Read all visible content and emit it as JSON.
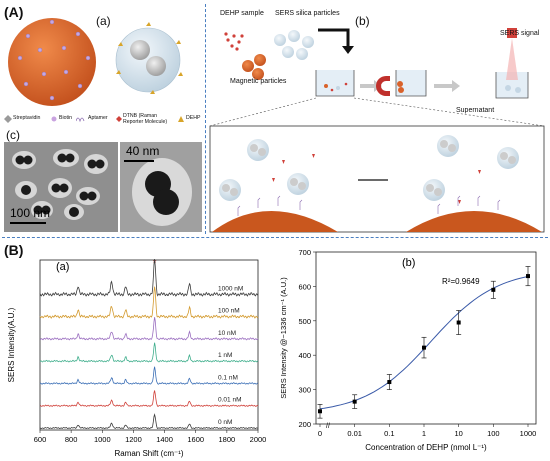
{
  "panel_A": {
    "label": "(A)",
    "sub_a": "(a)",
    "sub_b": "(b)",
    "sub_c": "(c)",
    "legend": [
      {
        "text": "Streptavidin",
        "icon": "streptavidin-icon"
      },
      {
        "text": "Biotin",
        "icon": "biotin-icon"
      },
      {
        "text": "Aptamer",
        "icon": "aptamer-icon"
      },
      {
        "text": "DTNB (Raman Reporter Molecule)",
        "icon": "dtnb-icon"
      },
      {
        "text": "DEHP",
        "icon": "dehp-icon"
      }
    ],
    "workflow": {
      "dehp_sample": "DEHP sample",
      "sers_particles": "SERS silica particles",
      "magnetic_particles": "Magnetic particles",
      "supernatant": "Supernatant",
      "sers_signal": "SERS signal"
    },
    "tem": {
      "scale_left": "100 nm",
      "scale_right": "40 nm"
    },
    "colors": {
      "magnetic": "#d9622b",
      "silica": "#d8e6ef",
      "accent_blue": "#4a7fc1"
    }
  },
  "panel_B": {
    "label": "(B)",
    "sub_a": "(a)",
    "sub_b": "(b)"
  },
  "chart_data": [
    {
      "type": "line",
      "title": "",
      "xlabel": "Raman Shift (cm⁻¹)",
      "ylabel": "SERS Intensity(A.U.)",
      "xlim": [
        600,
        2000
      ],
      "x_ticks": [
        600,
        800,
        1000,
        1200,
        1400,
        1600,
        1800,
        2000
      ],
      "peak_marker": "*",
      "peaks_x": [
        845,
        1060,
        1150,
        1336,
        1560
      ],
      "series": [
        {
          "name": "1000 nM",
          "color": "#3b3b3b",
          "peak": 1.0
        },
        {
          "name": "100 nM",
          "color": "#d39a2e",
          "peak": 0.85
        },
        {
          "name": "10 nM",
          "color": "#9b6fc0",
          "peak": 0.6
        },
        {
          "name": "1 nM",
          "color": "#3fae8c",
          "peak": 0.5
        },
        {
          "name": "0.1 nM",
          "color": "#3b6fb6",
          "peak": 0.45
        },
        {
          "name": "0.01 nM",
          "color": "#d0413a",
          "peak": 0.42
        },
        {
          "name": "0 nM",
          "color": "#3b3b3b",
          "peak": 0.38
        }
      ]
    },
    {
      "type": "scatter",
      "title": "",
      "xlabel": "Concentration of DEHP (nmol L⁻¹)",
      "ylabel": "SERS Intensity @~1336 cm⁻¹ (A.U.)",
      "annotation": "R²=0.9649",
      "ylim": [
        200,
        700
      ],
      "y_ticks": [
        200,
        300,
        400,
        500,
        600,
        700
      ],
      "x_tick_labels": [
        "0",
        "0.01",
        "0.1",
        "1",
        "10",
        "100",
        "1000"
      ],
      "points": [
        {
          "x": 0,
          "y": 237,
          "err": 20
        },
        {
          "x": 0.01,
          "y": 265,
          "err": 20
        },
        {
          "x": 0.1,
          "y": 322,
          "err": 22
        },
        {
          "x": 1,
          "y": 422,
          "err": 30
        },
        {
          "x": 10,
          "y": 495,
          "err": 35
        },
        {
          "x": 100,
          "y": 590,
          "err": 25
        },
        {
          "x": 1000,
          "y": 630,
          "err": 28
        }
      ],
      "fit": "sigmoidal",
      "colors": {
        "line": "#3a5aa8",
        "points": "#000000"
      }
    }
  ]
}
